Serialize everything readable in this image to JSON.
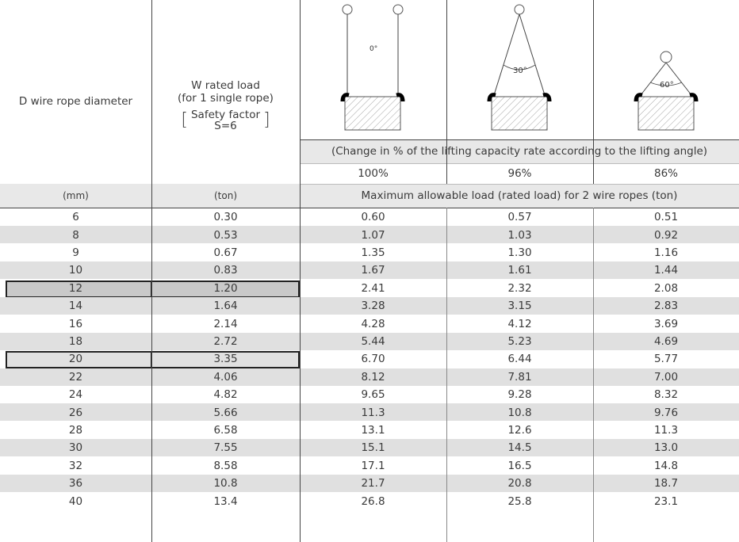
{
  "header": {
    "col1_label": "D wire rope diameter",
    "col2_label_line1": "W rated load",
    "col2_label_line2": "(for 1 single rope)",
    "col2_safety_line1": "Safety factor",
    "col2_safety_line2": "S=6",
    "angle_0": "0°",
    "angle_30": "30°",
    "angle_60": "60°",
    "change_note": "(Change in % of the lifting capacity rate according to the lifting angle)",
    "pct_0": "100%",
    "pct_30": "96%",
    "pct_60": "86%",
    "unit_mm": "(mm)",
    "unit_ton": "(ton)",
    "max_load_label": "Maximum allowable load (rated load) for 2 wire ropes (ton)"
  },
  "rows": [
    {
      "d": "6",
      "w": "0.30",
      "a0": "0.60",
      "a30": "0.57",
      "a60": "0.51"
    },
    {
      "d": "8",
      "w": "0.53",
      "a0": "1.07",
      "a30": "1.03",
      "a60": "0.92"
    },
    {
      "d": "9",
      "w": "0.67",
      "a0": "1.35",
      "a30": "1.30",
      "a60": "1.16"
    },
    {
      "d": "10",
      "w": "0.83",
      "a0": "1.67",
      "a30": "1.61",
      "a60": "1.44"
    },
    {
      "d": "12",
      "w": "1.20",
      "a0": "2.41",
      "a30": "2.32",
      "a60": "2.08"
    },
    {
      "d": "14",
      "w": "1.64",
      "a0": "3.28",
      "a30": "3.15",
      "a60": "2.83"
    },
    {
      "d": "16",
      "w": "2.14",
      "a0": "4.28",
      "a30": "4.12",
      "a60": "3.69"
    },
    {
      "d": "18",
      "w": "2.72",
      "a0": "5.44",
      "a30": "5.23",
      "a60": "4.69"
    },
    {
      "d": "20",
      "w": "3.35",
      "a0": "6.70",
      "a30": "6.44",
      "a60": "5.77"
    },
    {
      "d": "22",
      "w": "4.06",
      "a0": "8.12",
      "a30": "7.81",
      "a60": "7.00"
    },
    {
      "d": "24",
      "w": "4.82",
      "a0": "9.65",
      "a30": "9.28",
      "a60": "8.32"
    },
    {
      "d": "26",
      "w": "5.66",
      "a0": "11.3",
      "a30": "10.8",
      "a60": "9.76"
    },
    {
      "d": "28",
      "w": "6.58",
      "a0": "13.1",
      "a30": "12.6",
      "a60": "11.3"
    },
    {
      "d": "30",
      "w": "7.55",
      "a0": "15.1",
      "a30": "14.5",
      "a60": "13.0"
    },
    {
      "d": "32",
      "w": "8.58",
      "a0": "17.1",
      "a30": "16.5",
      "a60": "14.8"
    },
    {
      "d": "36",
      "w": "10.8",
      "a0": "21.7",
      "a30": "20.8",
      "a60": "18.7"
    },
    {
      "d": "40",
      "w": "13.4",
      "a0": "26.8",
      "a30": "25.8",
      "a60": "23.1"
    }
  ],
  "highlighted_rows": [
    4,
    8
  ],
  "colors": {
    "stripe": "#e0e0e0",
    "hilite_fill": "#c9c9c9",
    "header_band": "#e6e6e6"
  }
}
